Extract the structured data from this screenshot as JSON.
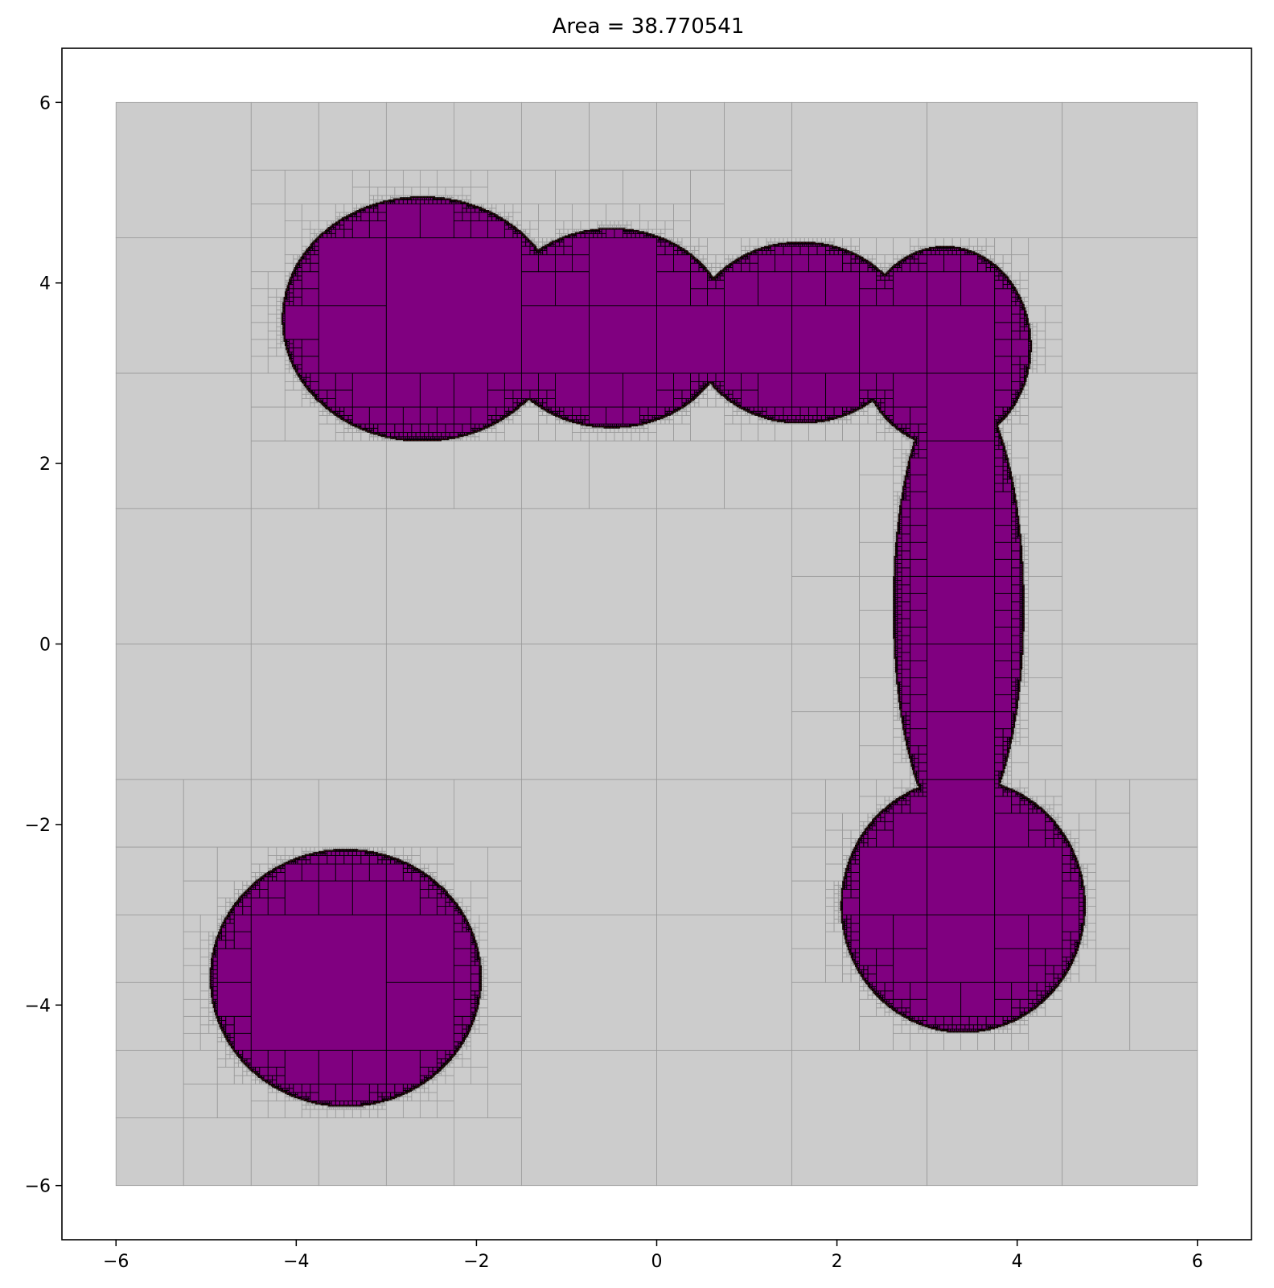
{
  "chart_data": {
    "type": "heatmap",
    "title": "Area = 38.770541",
    "xlabel": "",
    "ylabel": "",
    "xlim": [
      -6.6,
      6.6
    ],
    "ylim": [
      -6.6,
      6.6
    ],
    "domain": [
      -6,
      6
    ],
    "x_ticks": [
      -6,
      -4,
      -2,
      0,
      2,
      4,
      6
    ],
    "y_ticks": [
      -6,
      -4,
      -2,
      0,
      2,
      4,
      6
    ],
    "x_tick_labels": [
      "−6",
      "−4",
      "−2",
      "0",
      "2",
      "4",
      "6"
    ],
    "y_tick_labels": [
      "−6",
      "−4",
      "−2",
      "0",
      "2",
      "4",
      "6"
    ],
    "grid": false,
    "legend": "none",
    "regions": {
      "interior_color": "#800080",
      "boundary_color": "#a52a2a",
      "exterior_color": "#cccccc",
      "exterior_edge": "#999999",
      "interior_edge": "#000000"
    },
    "shape": {
      "blobs": [
        {
          "cx": -2.6,
          "cy": 3.6,
          "rx": 1.55,
          "ry": 1.35
        },
        {
          "cx": -0.5,
          "cy": 3.5,
          "rx": 1.3,
          "ry": 1.1
        },
        {
          "cx": 1.6,
          "cy": 3.45,
          "rx": 1.2,
          "ry": 1.0
        },
        {
          "cx": 3.2,
          "cy": 3.3,
          "rx": 0.95,
          "ry": 1.1
        },
        {
          "cx": 3.35,
          "cy": 0.4,
          "rx": 0.72,
          "ry": 2.5
        },
        {
          "cx": 3.4,
          "cy": -2.9,
          "rx": 1.35,
          "ry": 1.4
        },
        {
          "cx": -3.45,
          "cy": -3.7,
          "rx": 1.5,
          "ry": 1.42
        }
      ],
      "threshold": 1
    },
    "max_depth": 7
  }
}
